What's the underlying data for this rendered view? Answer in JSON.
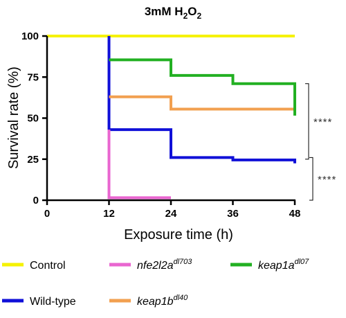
{
  "chart_data": {
    "type": "line",
    "step": true,
    "title": "3mM H2O2",
    "title_parts": {
      "base": "3mM H",
      "sub1": "2",
      "mid": "O",
      "sub2": "2"
    },
    "xlabel": "Exposure time (h)",
    "ylabel": "Survival rate (%)",
    "xlim": [
      0,
      48
    ],
    "ylim": [
      0,
      100
    ],
    "xticks": [
      0,
      12,
      24,
      36,
      48
    ],
    "yticks": [
      0,
      25,
      50,
      75,
      100
    ],
    "grid": false,
    "legend_position": "bottom",
    "series": [
      {
        "name": "Control",
        "color": "#f5f200",
        "italic": false,
        "x": [
          0,
          48
        ],
        "y": [
          100,
          100
        ]
      },
      {
        "name": "Wild-type",
        "color": "#1010d8",
        "italic": false,
        "x": [
          12,
          12,
          24,
          24,
          36,
          36,
          48,
          48
        ],
        "y": [
          100,
          43,
          43,
          26,
          26,
          24.5,
          24.5,
          22.5
        ]
      },
      {
        "name": "nfe2l2a",
        "sup": "dl703",
        "color": "#e966d0",
        "italic": true,
        "x": [
          12,
          12,
          24
        ],
        "y": [
          43,
          1.5,
          1.5
        ]
      },
      {
        "name": "keap1b",
        "sup": "dl40",
        "color": "#f2a050",
        "italic": true,
        "x": [
          12,
          24,
          24,
          48
        ],
        "y": [
          63,
          63,
          55.5,
          55.5
        ]
      },
      {
        "name": "keap1a",
        "sup": "dl07",
        "color": "#22b022",
        "italic": true,
        "x": [
          12,
          24,
          24,
          36,
          36,
          48,
          48
        ],
        "y": [
          85.5,
          85.5,
          76,
          76,
          71,
          71,
          51.5
        ]
      }
    ],
    "significance": [
      {
        "label": "****",
        "from": 71,
        "to": 25
      },
      {
        "label": "****",
        "from": 26,
        "to": 0
      }
    ]
  }
}
